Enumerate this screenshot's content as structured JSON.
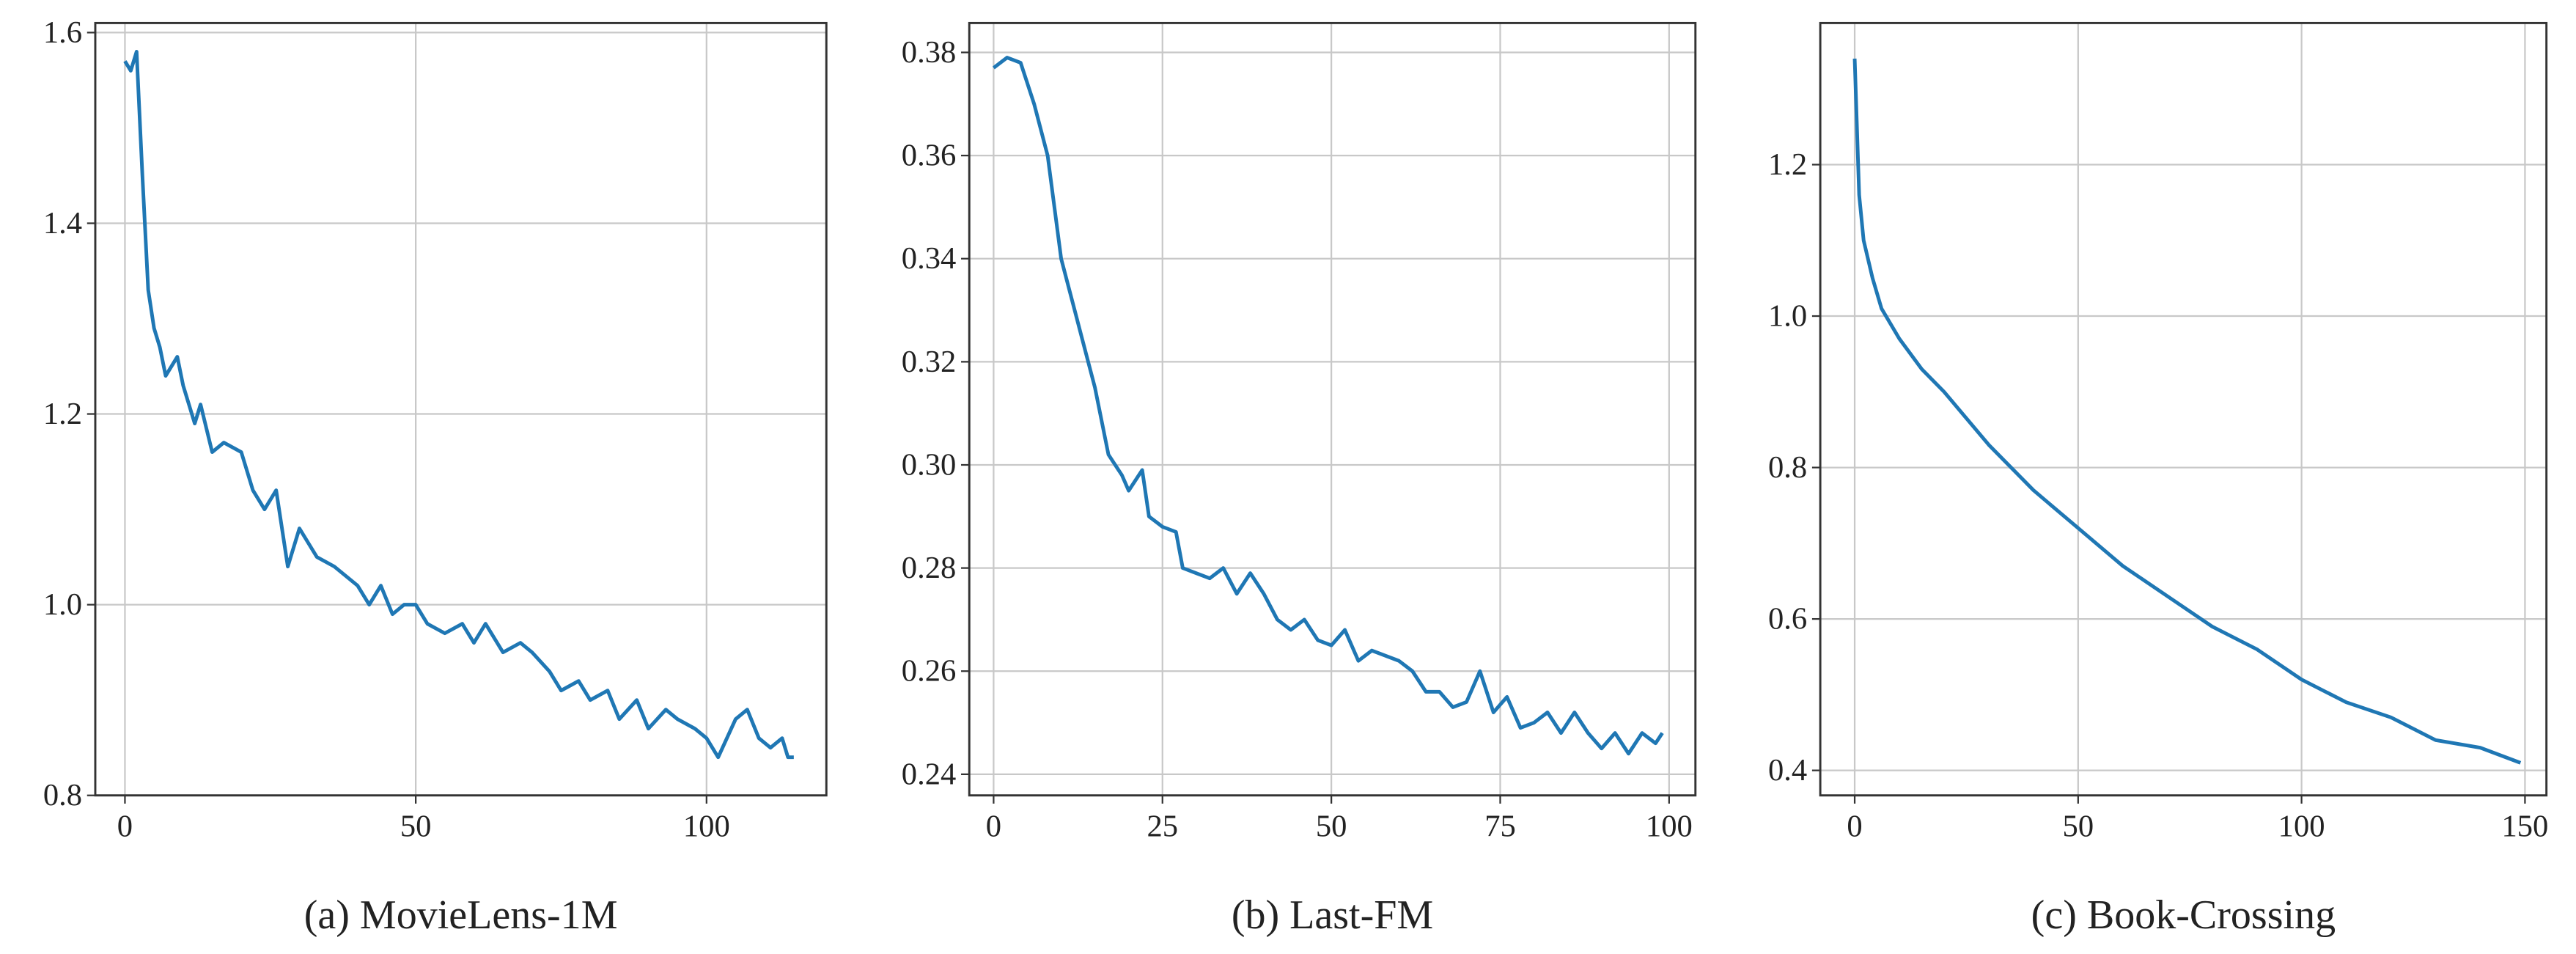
{
  "chart_data": [
    {
      "type": "line",
      "title": "(a) MovieLens-1M",
      "color": "#1f77b4",
      "grid": true,
      "x": [
        0,
        1,
        2,
        3,
        4,
        5,
        6,
        7,
        8,
        9,
        10,
        12,
        13,
        15,
        17,
        20,
        22,
        24,
        26,
        28,
        30,
        33,
        36,
        40,
        42,
        44,
        46,
        48,
        50,
        52,
        55,
        58,
        60,
        62,
        65,
        68,
        70,
        73,
        75,
        78,
        80,
        83,
        85,
        88,
        90,
        93,
        95,
        98,
        100,
        102,
        105,
        107,
        109,
        111,
        113,
        114,
        115
      ],
      "values": [
        1.57,
        1.56,
        1.58,
        1.45,
        1.33,
        1.29,
        1.27,
        1.24,
        1.25,
        1.26,
        1.23,
        1.19,
        1.21,
        1.16,
        1.17,
        1.16,
        1.12,
        1.1,
        1.12,
        1.04,
        1.08,
        1.05,
        1.04,
        1.02,
        1.0,
        1.02,
        0.99,
        1.0,
        1.0,
        0.98,
        0.97,
        0.98,
        0.96,
        0.98,
        0.95,
        0.96,
        0.95,
        0.93,
        0.91,
        0.92,
        0.9,
        0.91,
        0.88,
        0.9,
        0.87,
        0.89,
        0.88,
        0.87,
        0.86,
        0.84,
        0.88,
        0.89,
        0.86,
        0.85,
        0.86,
        0.84,
        0.84
      ],
      "xlim": [
        -5.1,
        120.6
      ],
      "ylim": [
        0.8,
        1.61
      ],
      "xticks": [
        0,
        50,
        100
      ],
      "yticks": [
        0.8,
        {
          "value": 1.0,
          "label": "1.0"
        },
        1.2,
        1.4,
        1.6
      ]
    },
    {
      "type": "line",
      "title": "(b) Last-FM",
      "color": "#1f77b4",
      "grid": true,
      "x": [
        0,
        2,
        4,
        6,
        8,
        10,
        12,
        13,
        15,
        17,
        19,
        20,
        22,
        23,
        25,
        27,
        28,
        30,
        32,
        34,
        36,
        38,
        40,
        42,
        44,
        46,
        48,
        50,
        52,
        54,
        56,
        58,
        60,
        62,
        64,
        66,
        68,
        70,
        72,
        74,
        76,
        78,
        80,
        82,
        84,
        86,
        88,
        90,
        92,
        94,
        96,
        98,
        99
      ],
      "values": [
        0.377,
        0.379,
        0.378,
        0.37,
        0.36,
        0.34,
        0.33,
        0.325,
        0.315,
        0.302,
        0.298,
        0.295,
        0.299,
        0.29,
        0.288,
        0.287,
        0.28,
        0.279,
        0.278,
        0.28,
        0.275,
        0.279,
        0.275,
        0.27,
        0.268,
        0.27,
        0.266,
        0.265,
        0.268,
        0.262,
        0.264,
        0.263,
        0.262,
        0.26,
        0.256,
        0.256,
        0.253,
        0.254,
        0.26,
        0.252,
        0.255,
        0.249,
        0.25,
        0.252,
        0.248,
        0.252,
        0.248,
        0.245,
        0.248,
        0.244,
        0.248,
        0.246,
        0.248
      ],
      "xlim": [
        -3.6,
        103.9
      ],
      "ylim": [
        0.2359,
        0.3857
      ],
      "xticks": [
        0,
        25,
        50,
        75,
        100
      ],
      "yticks": [
        0.24,
        0.26,
        0.28,
        {
          "value": 0.3,
          "label": "0.30"
        },
        0.32,
        0.34,
        0.36,
        0.38
      ]
    },
    {
      "type": "line",
      "title": "(c) Book-Crossing",
      "color": "#1f77b4",
      "grid": true,
      "x": [
        0,
        1,
        2,
        4,
        6,
        10,
        15,
        20,
        30,
        40,
        50,
        60,
        70,
        80,
        90,
        100,
        110,
        120,
        130,
        140,
        149
      ],
      "values": [
        1.34,
        1.16,
        1.1,
        1.05,
        1.01,
        0.97,
        0.93,
        0.9,
        0.83,
        0.77,
        0.72,
        0.67,
        0.63,
        0.59,
        0.56,
        0.52,
        0.49,
        0.47,
        0.44,
        0.43,
        0.41
      ],
      "xlim": [
        -7.7,
        154.8
      ],
      "ylim": [
        0.367,
        1.387
      ],
      "xticks": [
        0,
        50,
        100,
        150
      ],
      "yticks": [
        0.4,
        0.6,
        0.8,
        {
          "value": 1.0,
          "label": "1.0"
        },
        1.2
      ]
    }
  ]
}
